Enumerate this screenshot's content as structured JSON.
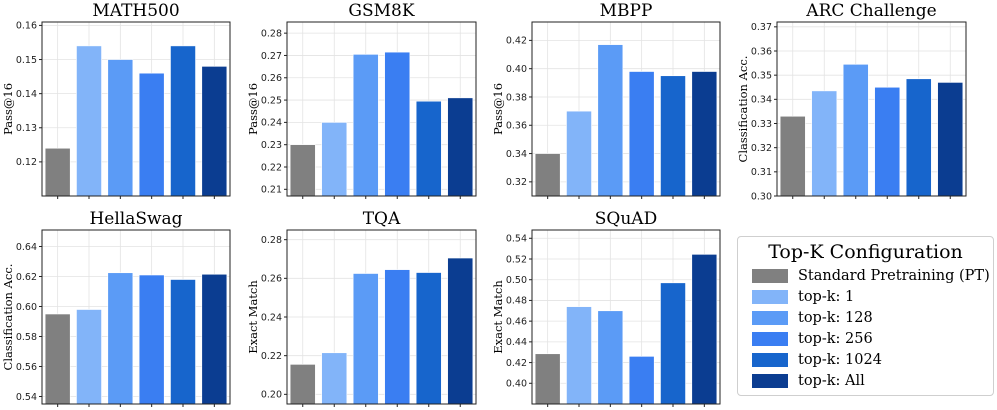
{
  "colors": [
    "#808080",
    "#82b4f9",
    "#5b9bf6",
    "#3a7ef2",
    "#1765cc",
    "#0b3d91"
  ],
  "legend": {
    "title": "Top-K Configuration",
    "items": [
      {
        "label": "Standard Pretraining (PT)",
        "color": "#808080"
      },
      {
        "label": "top-k: 1",
        "color": "#82b4f9"
      },
      {
        "label": "top-k: 128",
        "color": "#5b9bf6"
      },
      {
        "label": "top-k: 256",
        "color": "#3a7ef2"
      },
      {
        "label": "top-k: 1024",
        "color": "#1765cc"
      },
      {
        "label": "top-k: All",
        "color": "#0b3d91"
      }
    ]
  },
  "chart_data": [
    {
      "type": "bar",
      "title": "MATH500",
      "ylabel": "Pass@16",
      "ylim": [
        0.11,
        0.161
      ],
      "yticks": [
        0.12,
        0.13,
        0.14,
        0.15,
        0.16
      ],
      "ytick_labels": [
        "0.12",
        "0.13",
        "0.14",
        "0.15",
        "0.16"
      ],
      "categories": [
        "Standard Pretraining (PT)",
        "top-k: 1",
        "top-k: 128",
        "top-k: 256",
        "top-k: 1024",
        "top-k: All"
      ],
      "values": [
        0.124,
        0.154,
        0.15,
        0.146,
        0.154,
        0.148
      ]
    },
    {
      "type": "bar",
      "title": "GSM8K",
      "ylabel": "Pass@16",
      "ylim": [
        0.207,
        0.285
      ],
      "yticks": [
        0.21,
        0.22,
        0.23,
        0.24,
        0.25,
        0.26,
        0.27,
        0.28
      ],
      "ytick_labels": [
        "0.21",
        "0.22",
        "0.23",
        "0.24",
        "0.25",
        "0.26",
        "0.27",
        "0.28"
      ],
      "categories": [
        "Standard Pretraining (PT)",
        "top-k: 1",
        "top-k: 128",
        "top-k: 256",
        "top-k: 1024",
        "top-k: All"
      ],
      "values": [
        0.23,
        0.24,
        0.2705,
        0.2715,
        0.2495,
        0.251
      ]
    },
    {
      "type": "bar",
      "title": "MBPP",
      "ylabel": "Pass@16",
      "ylim": [
        0.31,
        0.433
      ],
      "yticks": [
        0.32,
        0.34,
        0.36,
        0.38,
        0.4,
        0.42
      ],
      "ytick_labels": [
        "0.32",
        "0.34",
        "0.36",
        "0.38",
        "0.40",
        "0.42"
      ],
      "categories": [
        "Standard Pretraining (PT)",
        "top-k: 1",
        "top-k: 128",
        "top-k: 256",
        "top-k: 1024",
        "top-k: All"
      ],
      "values": [
        0.34,
        0.37,
        0.417,
        0.398,
        0.395,
        0.398
      ]
    },
    {
      "type": "bar",
      "title": "ARC Challenge",
      "ylabel": "Classification Acc.",
      "ylim": [
        0.3,
        0.372
      ],
      "yticks": [
        0.3,
        0.31,
        0.32,
        0.33,
        0.34,
        0.35,
        0.36,
        0.37
      ],
      "ytick_labels": [
        "0.30",
        "0.31",
        "0.32",
        "0.33",
        "0.34",
        "0.35",
        "0.36",
        "0.37"
      ],
      "categories": [
        "Standard Pretraining (PT)",
        "top-k: 1",
        "top-k: 128",
        "top-k: 256",
        "top-k: 1024",
        "top-k: All"
      ],
      "values": [
        0.333,
        0.3435,
        0.3545,
        0.345,
        0.3485,
        0.347
      ]
    },
    {
      "type": "bar",
      "title": "HellaSwag",
      "ylabel": "Classification Acc.",
      "ylim": [
        0.535,
        0.651
      ],
      "yticks": [
        0.54,
        0.56,
        0.58,
        0.6,
        0.62,
        0.64
      ],
      "ytick_labels": [
        "0.54",
        "0.56",
        "0.58",
        "0.60",
        "0.62",
        "0.64"
      ],
      "categories": [
        "Standard Pretraining (PT)",
        "top-k: 1",
        "top-k: 128",
        "top-k: 256",
        "top-k: 1024",
        "top-k: All"
      ],
      "values": [
        0.595,
        0.598,
        0.6225,
        0.621,
        0.618,
        0.6215
      ]
    },
    {
      "type": "bar",
      "title": "TQA",
      "ylabel": "Exact Match",
      "ylim": [
        0.195,
        0.285
      ],
      "yticks": [
        0.2,
        0.22,
        0.24,
        0.26,
        0.28
      ],
      "ytick_labels": [
        "0.20",
        "0.22",
        "0.24",
        "0.26",
        "0.28"
      ],
      "categories": [
        "Standard Pretraining (PT)",
        "top-k: 1",
        "top-k: 128",
        "top-k: 256",
        "top-k: 1024",
        "top-k: All"
      ],
      "values": [
        0.2155,
        0.2215,
        0.2625,
        0.2645,
        0.263,
        0.2705
      ]
    },
    {
      "type": "bar",
      "title": "SQuAD",
      "ylabel": "Exact Match",
      "ylim": [
        0.38,
        0.548
      ],
      "yticks": [
        0.4,
        0.42,
        0.44,
        0.46,
        0.48,
        0.5,
        0.52,
        0.54
      ],
      "ytick_labels": [
        "0.40",
        "0.42",
        "0.44",
        "0.46",
        "0.48",
        "0.50",
        "0.52",
        "0.54"
      ],
      "categories": [
        "Standard Pretraining (PT)",
        "top-k: 1",
        "top-k: 128",
        "top-k: 256",
        "top-k: 1024",
        "top-k: All"
      ],
      "values": [
        0.4285,
        0.474,
        0.47,
        0.426,
        0.497,
        0.5245
      ]
    }
  ]
}
